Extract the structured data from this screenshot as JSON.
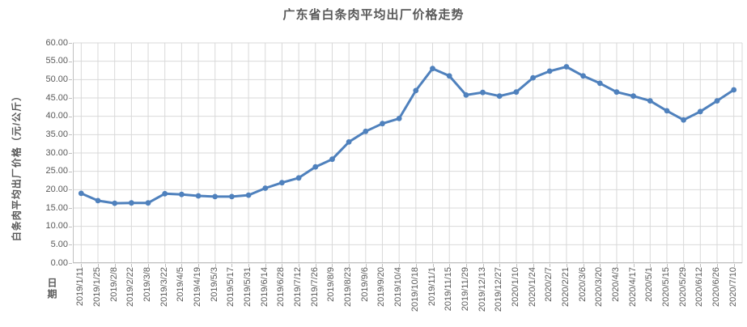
{
  "window": {
    "background": "#ffffff"
  },
  "chart_data": {
    "type": "line",
    "title": "广东省白条肉平均出厂价格走势",
    "xlabel": "日期",
    "ylabel": "白条肉平均出厂价格（元/公斤）",
    "ylim": [
      0,
      60
    ],
    "ytick_step": 5,
    "ytick_labels": [
      "0.00",
      "5.00",
      "10.00",
      "15.00",
      "20.00",
      "25.00",
      "30.00",
      "35.00",
      "40.00",
      "45.00",
      "50.00",
      "55.00",
      "60.00"
    ],
    "grid": true,
    "legend_position": "none",
    "series_name": "白条肉平均出厂价格",
    "categories": [
      "2019/1/11",
      "2019/1/25",
      "2019/2/8",
      "2019/2/22",
      "2019/3/8",
      "2019/3/22",
      "2019/4/5",
      "2019/4/19",
      "2019/5/3",
      "2019/5/17",
      "2019/5/31",
      "2019/6/14",
      "2019/6/28",
      "2019/7/12",
      "2019/7/26",
      "2019/8/9",
      "2019/8/23",
      "2019/9/6",
      "2019/9/20",
      "2019/10/4",
      "2019/10/18",
      "2019/11/1",
      "2019/11/15",
      "2019/11/29",
      "2019/12/13",
      "2019/12/27",
      "2020/1/10",
      "2020/1/24",
      "2020/2/7",
      "2020/2/21",
      "2020/3/6",
      "2020/3/20",
      "2020/4/3",
      "2020/4/17",
      "2020/5/1",
      "2020/5/15",
      "2020/5/29",
      "2020/6/12",
      "2020/6/26",
      "2020/7/10"
    ],
    "values": [
      19.0,
      17.0,
      16.3,
      16.4,
      16.4,
      18.9,
      18.7,
      18.3,
      18.1,
      18.1,
      18.5,
      20.4,
      21.9,
      23.2,
      26.2,
      28.3,
      33.0,
      35.9,
      38.0,
      39.4,
      47.0,
      53.0,
      51.0,
      45.8,
      46.5,
      45.5,
      46.6,
      50.5,
      52.3,
      53.5,
      51.0,
      49.0,
      46.6,
      45.5,
      44.2,
      41.5,
      39.0,
      41.3,
      44.2,
      47.2
    ]
  },
  "colors": {
    "series_line": "#4F81BD",
    "marker": "#4F81BD",
    "gridline": "#D9D9D9",
    "axis_line": "#BFBFBF",
    "text": "#595959",
    "background": "#FFFFFF"
  }
}
